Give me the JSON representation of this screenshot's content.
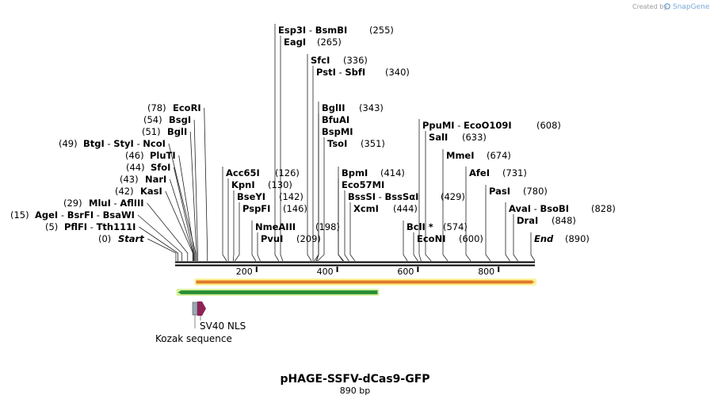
{
  "map": {
    "name": "pHAGE-SSFV-dCas9-GFP",
    "length_label": "890 bp",
    "length_bp": 890
  },
  "branding": {
    "created_by": "Created by",
    "app": "SnapGene"
  },
  "ruler": {
    "ticks": [
      {
        "pos": 200,
        "label": "200"
      },
      {
        "pos": 400,
        "label": "400"
      },
      {
        "pos": 600,
        "label": "600"
      },
      {
        "pos": 800,
        "label": "800"
      }
    ]
  },
  "sites": [
    {
      "id": "start",
      "names": [
        "Start"
      ],
      "pos": 0,
      "pos_label": "(0)",
      "italic": true,
      "left": true
    },
    {
      "id": "pflfi",
      "names": [
        "PflFI",
        "Tth111I"
      ],
      "pos": 5,
      "pos_label": "(5)",
      "left": true
    },
    {
      "id": "agei",
      "names": [
        "AgeI",
        "BsrFI",
        "BsaWI"
      ],
      "pos": 15,
      "pos_label": "(15)",
      "left": true
    },
    {
      "id": "mlui",
      "names": [
        "MluI",
        "AflIII"
      ],
      "pos": 29,
      "pos_label": "(29)",
      "left": true
    },
    {
      "id": "kasi",
      "names": [
        "KasI"
      ],
      "pos": 42,
      "pos_label": "(42)",
      "left": true
    },
    {
      "id": "nari",
      "names": [
        "NarI"
      ],
      "pos": 43,
      "pos_label": "(43)",
      "left": true
    },
    {
      "id": "sfoi",
      "names": [
        "SfoI"
      ],
      "pos": 44,
      "pos_label": "(44)",
      "left": true
    },
    {
      "id": "pluti",
      "names": [
        "PluTI"
      ],
      "pos": 46,
      "pos_label": "(46)",
      "left": true
    },
    {
      "id": "btgi",
      "names": [
        "BtgI",
        "StyI",
        "NcoI"
      ],
      "pos": 49,
      "pos_label": "(49)",
      "left": true
    },
    {
      "id": "bgli",
      "names": [
        "BglI"
      ],
      "pos": 51,
      "pos_label": "(51)",
      "left": true
    },
    {
      "id": "bsgi",
      "names": [
        "BsgI"
      ],
      "pos": 54,
      "pos_label": "(54)",
      "left": true
    },
    {
      "id": "ecori",
      "names": [
        "EcoRI"
      ],
      "pos": 78,
      "pos_label": "(78)",
      "left": true
    },
    {
      "id": "acc65i",
      "names": [
        "Acc65I"
      ],
      "pos": 126,
      "pos_label": "(126)"
    },
    {
      "id": "kpni",
      "names": [
        "KpnI"
      ],
      "pos": 130,
      "pos_label": "(130)"
    },
    {
      "id": "bseyi",
      "names": [
        "BseYI"
      ],
      "pos": 142,
      "pos_label": "(142)"
    },
    {
      "id": "pspfi",
      "names": [
        "PspFI"
      ],
      "pos": 146,
      "pos_label": "(146)"
    },
    {
      "id": "nmeaiii",
      "names": [
        "NmeAIII"
      ],
      "pos": 198,
      "pos_label": "(198)"
    },
    {
      "id": "pvui",
      "names": [
        "PvuI"
      ],
      "pos": 209,
      "pos_label": "(209)"
    },
    {
      "id": "esp3i",
      "names": [
        "Esp3I",
        "BsmBI"
      ],
      "pos": 255,
      "pos_label": "(255)"
    },
    {
      "id": "eagi",
      "names": [
        "EagI"
      ],
      "pos": 265,
      "pos_label": "(265)"
    },
    {
      "id": "sfci",
      "names": [
        "SfcI"
      ],
      "pos": 336,
      "pos_label": "(336)"
    },
    {
      "id": "psti",
      "names": [
        "PstI",
        "SbfI"
      ],
      "pos": 340,
      "pos_label": "(340)"
    },
    {
      "id": "bglii",
      "names": [
        "BglII"
      ],
      "pos": 343,
      "pos_label": "(343)"
    },
    {
      "id": "bfuai",
      "names": [
        "BfuAI"
      ],
      "pos": 348,
      "pos_label": ""
    },
    {
      "id": "bspmi",
      "names": [
        "BspMI"
      ],
      "pos": 349,
      "pos_label": ""
    },
    {
      "id": "tsoi",
      "names": [
        "TsoI"
      ],
      "pos": 351,
      "pos_label": "(351)"
    },
    {
      "id": "bpmi",
      "names": [
        "BpmI"
      ],
      "pos": 414,
      "pos_label": "(414)"
    },
    {
      "id": "eco57mi",
      "names": [
        "Eco57MI"
      ],
      "pos": 416,
      "pos_label": ""
    },
    {
      "id": "bsssi",
      "names": [
        "BssSI",
        "BssSαI"
      ],
      "pos": 429,
      "pos_label": "(429)"
    },
    {
      "id": "xcmi",
      "names": [
        "XcmI"
      ],
      "pos": 444,
      "pos_label": "(444)"
    },
    {
      "id": "bcli",
      "names": [
        "BclI *"
      ],
      "pos": 574,
      "pos_label": "(574)"
    },
    {
      "id": "econi",
      "names": [
        "EcoNI"
      ],
      "pos": 600,
      "pos_label": "(600)"
    },
    {
      "id": "ppumi",
      "names": [
        "PpuMI",
        "EcoO109I"
      ],
      "pos": 608,
      "pos_label": "(608)"
    },
    {
      "id": "sali",
      "names": [
        "SalI"
      ],
      "pos": 633,
      "pos_label": "(633)"
    },
    {
      "id": "mmei",
      "names": [
        "MmeI"
      ],
      "pos": 674,
      "pos_label": "(674)"
    },
    {
      "id": "afei",
      "names": [
        "AfeI"
      ],
      "pos": 731,
      "pos_label": "(731)"
    },
    {
      "id": "pasi",
      "names": [
        "PasI"
      ],
      "pos": 780,
      "pos_label": "(780)"
    },
    {
      "id": "avai",
      "names": [
        "AvaI",
        "BsoBI"
      ],
      "pos": 828,
      "pos_label": "(828)"
    },
    {
      "id": "drai",
      "names": [
        "DraI"
      ],
      "pos": 848,
      "pos_label": "(848)"
    },
    {
      "id": "end",
      "names": [
        "End"
      ],
      "pos": 890,
      "pos_label": "(890)",
      "italic": true
    }
  ],
  "features": [
    {
      "id": "orf-forward",
      "start": 50,
      "end": 890,
      "direction": "forward",
      "fill": "#f4a43c",
      "inner": "#c8512c",
      "glow": "#f9f3a0"
    },
    {
      "id": "orf-reverse",
      "start": 5,
      "end": 500,
      "direction": "reverse",
      "fill": "#2e9a3a",
      "inner": "#2e7d32",
      "glow": "#d8f0a0"
    },
    {
      "id": "kozak",
      "label": "Kozak sequence",
      "start": 44,
      "end": 50,
      "fill": "#9aa7b4"
    },
    {
      "id": "sv40-nls",
      "label": "SV40 NLS",
      "start": 50,
      "end": 72,
      "fill": "#8e2356"
    }
  ]
}
